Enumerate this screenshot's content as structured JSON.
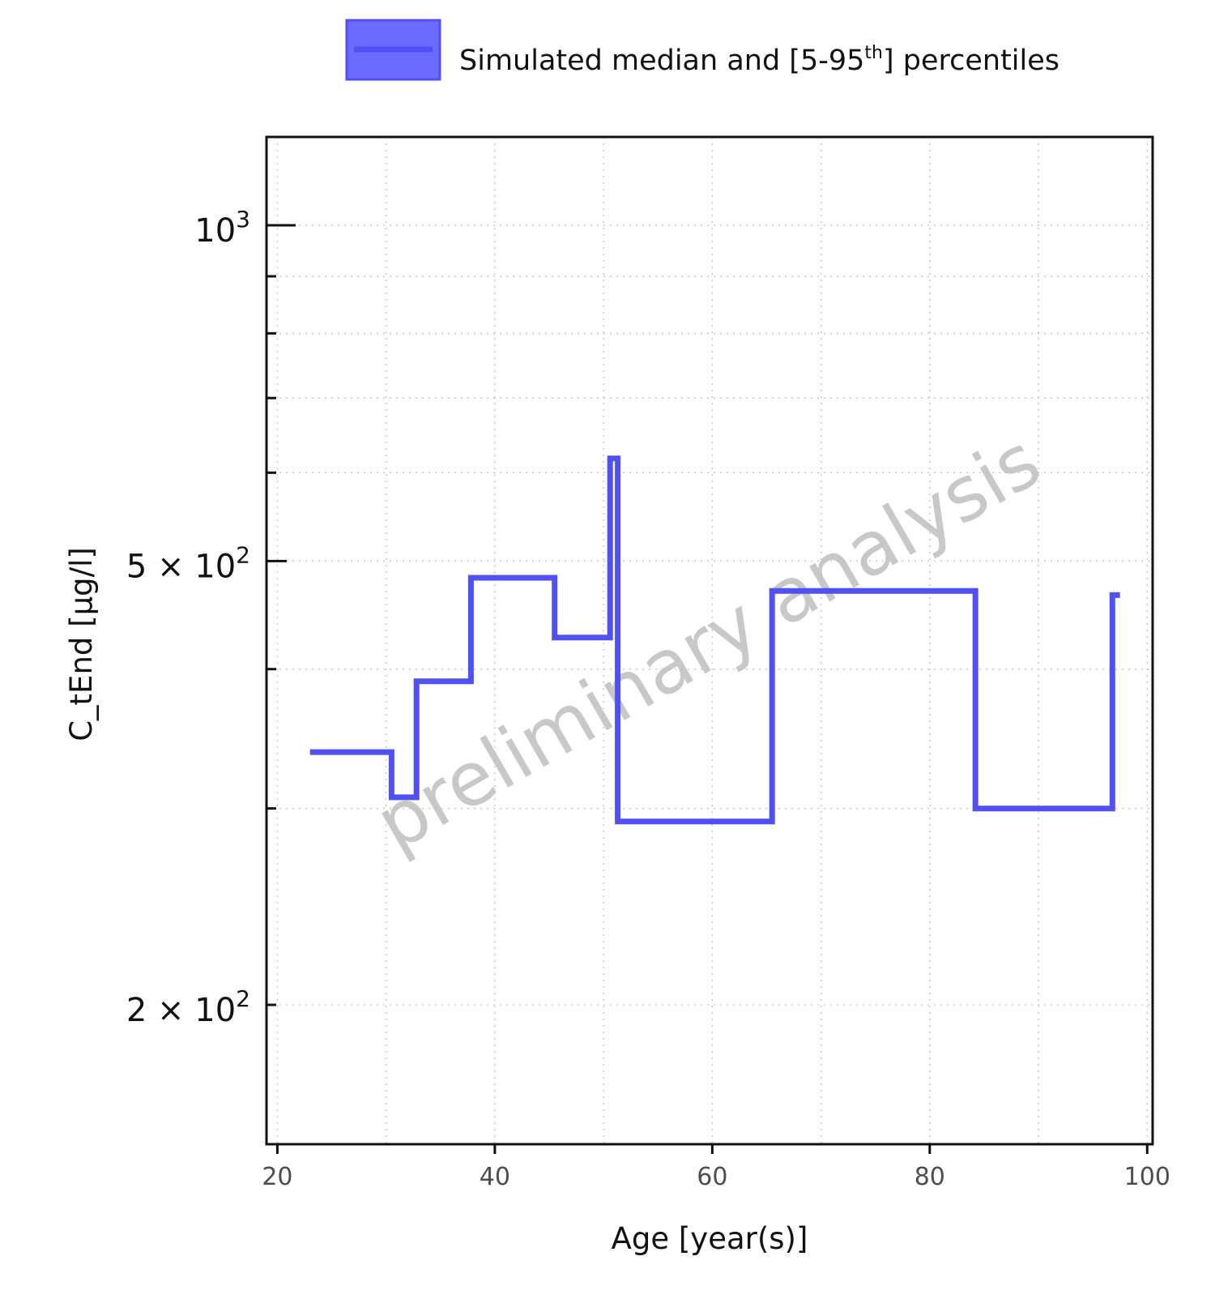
{
  "legend": {
    "label_main": "Simulated median and [5-95",
    "label_sup": "th",
    "label_end": "] percentiles"
  },
  "watermark": "preliminary analysis",
  "colors": {
    "series": "#5050f5",
    "ribbon": "#6b6bff",
    "grid": "#c8c8c8",
    "axis": "#111111"
  },
  "chart_data": {
    "type": "line",
    "step": true,
    "xlabel": "Age [year(s)]",
    "ylabel": "C_tEnd [µg/l]",
    "xlim": [
      19,
      100.5
    ],
    "ylim": [
      150,
      1200
    ],
    "yscale": "log",
    "grid": true,
    "legend_position": "top",
    "x_ticks": [
      20,
      40,
      60,
      80,
      100
    ],
    "x_minor_ticks": [
      30,
      50,
      70,
      90
    ],
    "y_ticks": [
      {
        "value": 1000,
        "mantissa": "",
        "exponent": "3"
      },
      {
        "value": 500,
        "mantissa": "5 × ",
        "exponent": "2"
      },
      {
        "value": 200,
        "mantissa": "2 × ",
        "exponent": "2"
      }
    ],
    "y_minor_ticks": [
      300,
      400,
      600,
      700,
      800,
      900
    ],
    "series": [
      {
        "name": "Simulated median and [5-95th] percentiles",
        "x": [
          23,
          30.5,
          32.8,
          37.8,
          45.5,
          50.6,
          51.3,
          65.5,
          84.2,
          96.8,
          97.5
        ],
        "y": [
          337,
          307,
          390,
          483,
          427,
          618,
          292,
          470,
          300,
          466,
          466
        ]
      }
    ]
  }
}
